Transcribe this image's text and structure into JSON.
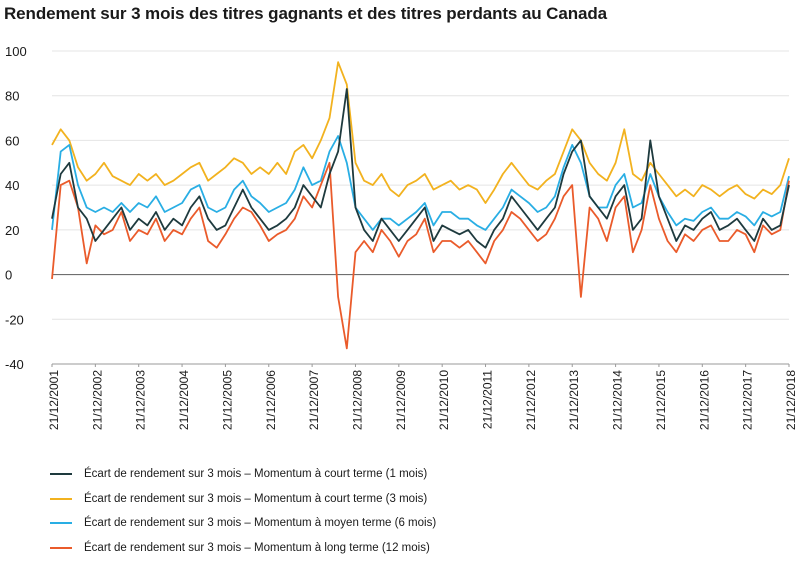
{
  "chart_data": {
    "type": "line",
    "title": "Rendement sur 3 mois des titres gagnants et des titres perdants au Canada",
    "xlabel": "",
    "ylabel": "",
    "ylim": [
      -40,
      100
    ],
    "yticks": [
      100,
      80,
      60,
      40,
      20,
      0,
      -20,
      -40
    ],
    "xtick_labels": [
      "21/12/2001",
      "21/12/2002",
      "21/12/2003",
      "21/12/2004",
      "21/12/2005",
      "21/12/2006",
      "21/12/2007",
      "21/12/2008",
      "21/12/2009",
      "21/12/2010",
      "21/12/2011",
      "21/12/2012",
      "21/12/2013",
      "21/12/2014",
      "21/12/2015",
      "21/12/2016",
      "21/12/2017",
      "21/12/2018"
    ],
    "x": [
      2001.97,
      2002.17,
      2002.37,
      2002.57,
      2002.77,
      2002.97,
      2003.17,
      2003.37,
      2003.57,
      2003.77,
      2003.97,
      2004.17,
      2004.37,
      2004.57,
      2004.77,
      2004.97,
      2005.17,
      2005.37,
      2005.57,
      2005.77,
      2005.97,
      2006.17,
      2006.37,
      2006.57,
      2006.77,
      2006.97,
      2007.17,
      2007.37,
      2007.57,
      2007.77,
      2007.97,
      2008.17,
      2008.37,
      2008.57,
      2008.77,
      2008.97,
      2009.17,
      2009.37,
      2009.57,
      2009.77,
      2009.97,
      2010.17,
      2010.37,
      2010.57,
      2010.77,
      2010.97,
      2011.17,
      2011.37,
      2011.57,
      2011.77,
      2011.97,
      2012.17,
      2012.37,
      2012.57,
      2012.77,
      2012.97,
      2013.17,
      2013.37,
      2013.57,
      2013.77,
      2013.97,
      2014.17,
      2014.37,
      2014.57,
      2014.77,
      2014.97,
      2015.17,
      2015.37,
      2015.57,
      2015.77,
      2015.97,
      2016.17,
      2016.37,
      2016.57,
      2016.77,
      2016.97,
      2017.17,
      2017.37,
      2017.57,
      2017.77,
      2017.97,
      2018.17,
      2018.37,
      2018.57,
      2018.77,
      2018.97
    ],
    "series": [
      {
        "name": "Écart de rendement sur 3 mois – Momentum à court terme (1 mois)",
        "color": "#1e3a3e",
        "values": [
          25,
          45,
          50,
          30,
          25,
          15,
          20,
          25,
          30,
          20,
          25,
          22,
          28,
          20,
          25,
          22,
          30,
          35,
          25,
          20,
          22,
          30,
          38,
          30,
          25,
          20,
          22,
          25,
          30,
          40,
          35,
          30,
          45,
          55,
          83,
          30,
          20,
          15,
          25,
          20,
          15,
          20,
          25,
          30,
          15,
          22,
          20,
          18,
          20,
          15,
          12,
          20,
          25,
          35,
          30,
          25,
          20,
          25,
          30,
          45,
          55,
          60,
          35,
          30,
          25,
          35,
          40,
          20,
          25,
          60,
          35,
          25,
          15,
          22,
          20,
          25,
          28,
          20,
          22,
          25,
          20,
          15,
          25,
          20,
          22,
          40
        ]
      },
      {
        "name": "Écart de rendement sur 3 mois – Momentum à court terme (3 mois)",
        "color": "#f2b21f",
        "values": [
          58,
          65,
          60,
          48,
          42,
          45,
          50,
          44,
          42,
          40,
          45,
          42,
          45,
          40,
          42,
          45,
          48,
          50,
          42,
          45,
          48,
          52,
          50,
          45,
          48,
          45,
          50,
          45,
          55,
          58,
          52,
          60,
          70,
          95,
          85,
          50,
          42,
          40,
          45,
          38,
          35,
          40,
          42,
          45,
          38,
          40,
          42,
          38,
          40,
          38,
          32,
          38,
          45,
          50,
          45,
          40,
          38,
          42,
          45,
          55,
          65,
          60,
          50,
          45,
          42,
          50,
          65,
          45,
          42,
          50,
          45,
          40,
          35,
          38,
          35,
          40,
          38,
          35,
          38,
          40,
          36,
          34,
          38,
          36,
          40,
          52
        ]
      },
      {
        "name": "Écart de rendement sur 3 mois – Momentum à moyen terme (6 mois)",
        "color": "#29aee4",
        "values": [
          20,
          55,
          58,
          40,
          30,
          28,
          30,
          28,
          32,
          28,
          32,
          30,
          35,
          28,
          30,
          32,
          38,
          40,
          30,
          28,
          30,
          38,
          42,
          35,
          32,
          28,
          30,
          32,
          38,
          48,
          40,
          42,
          55,
          62,
          50,
          30,
          25,
          20,
          25,
          25,
          22,
          25,
          28,
          32,
          22,
          28,
          28,
          25,
          25,
          22,
          20,
          25,
          30,
          38,
          35,
          32,
          28,
          30,
          35,
          48,
          58,
          50,
          35,
          30,
          30,
          40,
          45,
          30,
          32,
          45,
          35,
          28,
          22,
          25,
          24,
          28,
          30,
          25,
          25,
          28,
          26,
          22,
          28,
          26,
          28,
          44
        ]
      },
      {
        "name": "Écart de rendement sur 3 mois – Momentum à long terme (12 mois)",
        "color": "#ea5b2b",
        "values": [
          -2,
          40,
          42,
          30,
          5,
          22,
          18,
          20,
          28,
          15,
          20,
          18,
          25,
          15,
          20,
          18,
          25,
          30,
          15,
          12,
          18,
          25,
          30,
          28,
          22,
          15,
          18,
          20,
          25,
          35,
          30,
          40,
          50,
          -10,
          -33,
          10,
          15,
          10,
          20,
          15,
          8,
          15,
          18,
          25,
          10,
          15,
          15,
          12,
          15,
          10,
          5,
          15,
          20,
          28,
          25,
          20,
          15,
          18,
          25,
          35,
          40,
          -10,
          30,
          25,
          15,
          30,
          35,
          10,
          20,
          40,
          25,
          15,
          10,
          18,
          15,
          20,
          22,
          15,
          15,
          20,
          18,
          10,
          22,
          18,
          20,
          42
        ]
      }
    ]
  }
}
